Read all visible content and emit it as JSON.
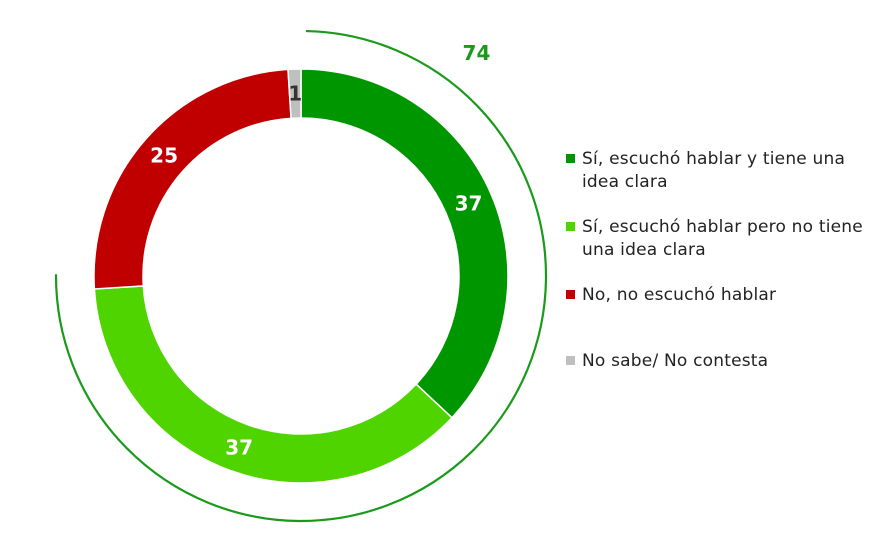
{
  "chart_data": {
    "type": "donut",
    "title": "",
    "series": [
      {
        "name": "Sí, escuchó hablar y tiene una idea clara",
        "value": 37,
        "label": "37",
        "color": "#009600"
      },
      {
        "name": "Sí, escuchó hablar pero no tiene una idea clara",
        "value": 37,
        "label": "37",
        "color": "#4fd400"
      },
      {
        "name": "No, no escuchó hablar",
        "value": 25,
        "label": "25",
        "color": "#c00000"
      },
      {
        "name": "No sabe/ No contesta",
        "value": 1,
        "label": "1",
        "color": "#bfbfbf"
      }
    ],
    "bracket": {
      "label": "74",
      "color": "#1a9a1a",
      "covers": [
        "Sí, escuchó hablar y tiene una idea clara",
        "Sí, escuchó hablar pero no tiene una idea clara"
      ]
    },
    "legend_position": "right"
  }
}
